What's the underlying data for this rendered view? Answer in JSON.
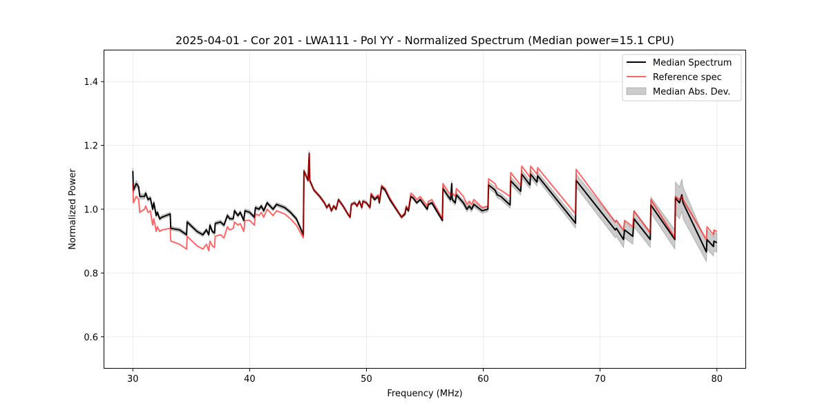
{
  "chart_data": {
    "type": "line",
    "title": "2025-04-01 - Cor 201 - LWA111 - Pol YY - Normalized Spectrum (Median power=15.1 CPU)",
    "xlabel": "Frequency (MHz)",
    "ylabel": "Normalized Power",
    "xlim": [
      27.5,
      82.5
    ],
    "ylim": [
      0.5,
      1.5
    ],
    "xticks": [
      "30",
      "40",
      "50",
      "60",
      "70",
      "80"
    ],
    "xtick_values": [
      30,
      40,
      50,
      60,
      70,
      80
    ],
    "yticks": [
      "0.6",
      "0.8",
      "1.0",
      "1.2",
      "1.4"
    ],
    "ytick_values": [
      0.6,
      0.8,
      1.0,
      1.2,
      1.4
    ],
    "grid": true,
    "legend_position": "top-right",
    "legend": [
      "Median Spectrum",
      "Reference spec",
      "Median Abs. Dev."
    ],
    "colors": {
      "median": "#000000",
      "reference": "#ff0000",
      "band": "#808080"
    },
    "x": [
      30.0,
      30.05,
      30.3,
      30.5,
      30.6,
      31.0,
      31.1,
      31.3,
      31.5,
      31.7,
      31.8,
      32.0,
      32.1,
      32.3,
      32.5,
      33.2,
      33.25,
      34.0,
      34.6,
      34.65,
      35.5,
      36.0,
      36.3,
      36.5,
      36.6,
      36.8,
      37.0,
      37.05,
      37.5,
      37.8,
      38.1,
      38.3,
      38.6,
      38.7,
      39.0,
      39.2,
      39.5,
      39.6,
      40.0,
      40.4,
      40.5,
      40.8,
      41.0,
      41.2,
      41.5,
      42.0,
      42.3,
      43.0,
      43.5,
      44.0,
      44.6,
      44.65,
      45.0,
      45.1,
      45.15,
      45.5,
      46.0,
      46.4,
      46.6,
      46.8,
      47.0,
      47.2,
      47.4,
      47.6,
      48.0,
      48.4,
      48.6,
      48.7,
      49.0,
      49.2,
      49.4,
      49.6,
      49.7,
      50.0,
      50.3,
      50.4,
      50.7,
      51.0,
      51.1,
      51.3,
      51.6,
      52.0,
      53.0,
      53.3,
      53.4,
      53.6,
      53.8,
      54.0,
      54.3,
      54.6,
      55.0,
      55.2,
      55.3,
      55.6,
      56.5,
      56.55,
      57.0,
      57.2,
      57.3,
      57.35,
      57.6,
      57.7,
      58.3,
      58.6,
      58.8,
      59.0,
      59.2,
      59.9,
      60.4,
      60.45,
      61.0,
      61.2,
      61.5,
      62.3,
      62.35,
      63.2,
      63.3,
      64.0,
      64.05,
      64.6,
      64.65,
      67.9,
      67.95,
      71.3,
      71.4,
      72.0,
      72.1,
      72.8,
      72.9,
      74.3,
      74.35,
      76.4,
      76.45,
      76.8,
      77.0,
      77.1,
      79.1,
      79.15,
      79.7,
      79.75,
      80.0
    ],
    "series": [
      {
        "name": "Median Spectrum",
        "values": [
          1.12,
          1.06,
          1.08,
          1.07,
          1.04,
          1.04,
          1.05,
          1.03,
          1.035,
          1.0,
          1.02,
          0.98,
          0.99,
          0.97,
          0.975,
          0.985,
          0.94,
          0.935,
          0.92,
          0.96,
          0.93,
          0.92,
          0.935,
          0.92,
          0.95,
          0.93,
          0.925,
          0.955,
          0.96,
          0.95,
          0.98,
          0.97,
          0.97,
          0.995,
          0.98,
          0.99,
          0.965,
          0.995,
          0.99,
          0.975,
          1.005,
          1.0,
          1.01,
          0.995,
          1.02,
          1.0,
          1.015,
          1.005,
          0.99,
          0.97,
          0.92,
          1.12,
          1.09,
          1.175,
          1.09,
          1.06,
          1.04,
          1.02,
          1.005,
          1.015,
          0.995,
          1.01,
          1.0,
          1.03,
          1.01,
          0.985,
          0.975,
          1.015,
          1.02,
          1.01,
          1.025,
          1.005,
          1.025,
          1.02,
          1.005,
          1.045,
          1.03,
          1.04,
          1.02,
          1.07,
          1.06,
          1.03,
          0.975,
          0.985,
          1.005,
          0.995,
          1.04,
          1.035,
          1.02,
          1.03,
          1.01,
          1.0,
          1.015,
          1.02,
          0.965,
          1.065,
          1.04,
          1.03,
          1.08,
          1.03,
          1.02,
          1.045,
          1.02,
          1.0,
          1.01,
          1.0,
          1.015,
          0.995,
          1.0,
          1.076,
          1.06,
          1.045,
          1.04,
          1.013,
          1.089,
          1.056,
          1.11,
          1.076,
          1.11,
          1.085,
          1.105,
          0.956,
          1.09,
          0.935,
          0.94,
          0.905,
          0.935,
          0.915,
          0.97,
          0.905,
          1.013,
          0.905,
          1.035,
          1.02,
          1.045,
          1.02,
          0.866,
          0.905,
          0.883,
          0.9,
          0.895
        ]
      },
      {
        "name": "Reference spec",
        "values": [
          1.08,
          1.02,
          1.04,
          1.03,
          0.99,
          1.0,
          1.01,
          0.99,
          0.995,
          0.95,
          0.97,
          0.93,
          0.945,
          0.93,
          0.935,
          0.94,
          0.9,
          0.89,
          0.875,
          0.915,
          0.885,
          0.875,
          0.89,
          0.87,
          0.9,
          0.885,
          0.88,
          0.915,
          0.92,
          0.91,
          0.945,
          0.935,
          0.94,
          0.96,
          0.95,
          0.955,
          0.93,
          0.965,
          0.965,
          0.95,
          0.985,
          0.98,
          0.99,
          0.975,
          1.0,
          0.98,
          0.995,
          0.985,
          0.97,
          0.95,
          0.91,
          1.12,
          1.09,
          1.175,
          1.09,
          1.06,
          1.04,
          1.02,
          1.005,
          1.015,
          0.995,
          1.01,
          1.0,
          1.03,
          1.01,
          0.985,
          0.975,
          1.015,
          1.02,
          1.01,
          1.025,
          1.005,
          1.025,
          1.02,
          1.005,
          1.05,
          1.035,
          1.045,
          1.025,
          1.075,
          1.065,
          1.035,
          0.975,
          0.99,
          1.01,
          1.0,
          1.05,
          1.045,
          1.03,
          1.04,
          1.02,
          1.01,
          1.025,
          1.03,
          0.97,
          1.08,
          1.055,
          1.045,
          1.05,
          1.05,
          1.04,
          1.065,
          1.04,
          1.015,
          1.025,
          1.015,
          1.03,
          1.005,
          1.01,
          1.095,
          1.08,
          1.065,
          1.06,
          1.04,
          1.115,
          1.075,
          1.135,
          1.1,
          1.135,
          1.11,
          1.13,
          0.985,
          1.125,
          0.96,
          0.965,
          0.935,
          0.965,
          0.945,
          0.995,
          0.925,
          1.03,
          0.91,
          1.04,
          1.03,
          1.04,
          1.03,
          0.905,
          0.945,
          0.92,
          0.935,
          0.93
        ]
      },
      {
        "name": "Median Abs. Dev.",
        "values": [
          0.01,
          0.01,
          0.01,
          0.008,
          0.008,
          0.008,
          0.006,
          0.006,
          0.006,
          0.006,
          0.006,
          0.006,
          0.006,
          0.006,
          0.006,
          0.006,
          0.006,
          0.006,
          0.006,
          0.006,
          0.006,
          0.006,
          0.006,
          0.006,
          0.006,
          0.006,
          0.006,
          0.006,
          0.006,
          0.006,
          0.006,
          0.006,
          0.006,
          0.006,
          0.006,
          0.006,
          0.006,
          0.006,
          0.006,
          0.006,
          0.006,
          0.006,
          0.006,
          0.006,
          0.006,
          0.006,
          0.006,
          0.006,
          0.006,
          0.006,
          0.006,
          0.006,
          0.006,
          0.01,
          0.006,
          0.005,
          0.005,
          0.005,
          0.005,
          0.005,
          0.005,
          0.005,
          0.005,
          0.005,
          0.005,
          0.005,
          0.005,
          0.005,
          0.005,
          0.005,
          0.005,
          0.005,
          0.005,
          0.005,
          0.005,
          0.005,
          0.005,
          0.005,
          0.005,
          0.005,
          0.005,
          0.005,
          0.005,
          0.005,
          0.005,
          0.005,
          0.005,
          0.005,
          0.005,
          0.005,
          0.005,
          0.005,
          0.005,
          0.005,
          0.006,
          0.008,
          0.008,
          0.008,
          0.01,
          0.008,
          0.008,
          0.008,
          0.008,
          0.008,
          0.008,
          0.008,
          0.008,
          0.008,
          0.008,
          0.01,
          0.01,
          0.01,
          0.01,
          0.01,
          0.012,
          0.012,
          0.012,
          0.012,
          0.012,
          0.012,
          0.012,
          0.015,
          0.02,
          0.025,
          0.025,
          0.025,
          0.025,
          0.025,
          0.025,
          0.025,
          0.025,
          0.03,
          0.05,
          0.05,
          0.05,
          0.05,
          0.03,
          0.03,
          0.03,
          0.03,
          0.03
        ]
      }
    ]
  }
}
